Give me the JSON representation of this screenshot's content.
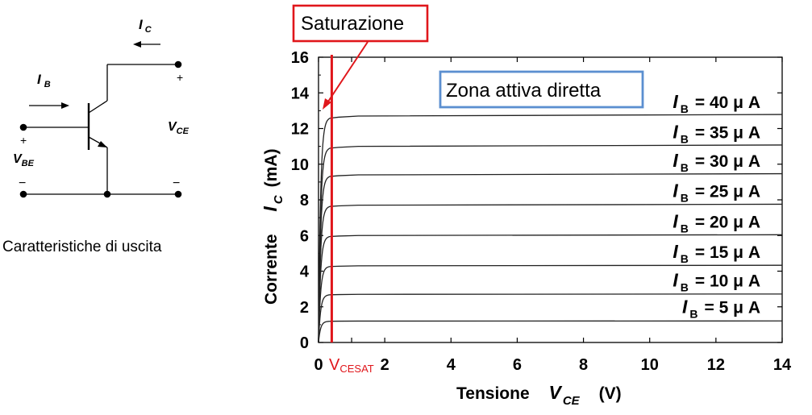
{
  "circuit": {
    "ic_label": "I",
    "ic_sub": "C",
    "ib_label": "I",
    "ib_sub": "B",
    "vce_label": "V",
    "vce_sub": "CE",
    "vbe_label": "V",
    "vbe_sub": "BE",
    "plus": "+",
    "minus": "−",
    "caption": "Caratteristiche di uscita"
  },
  "annotations": {
    "saturation": "Saturazione",
    "active_zone": "Zona attiva diretta",
    "vcesat_main": "V",
    "vcesat_sub": "CESAT",
    "box_red": "#e0161b",
    "box_blue": "#5b8fd0"
  },
  "chart_data": {
    "type": "line",
    "xlabel": "Tensione",
    "xlabel_var": "V",
    "xlabel_var_sub": "CE",
    "xlabel_unit": "(V)",
    "ylabel": "Corrente",
    "ylabel_var": "I",
    "ylabel_var_sub": "C",
    "ylabel_unit": "(mA)",
    "xlim": [
      0,
      14
    ],
    "ylim": [
      0,
      16
    ],
    "xticks": [
      "0",
      "",
      "2",
      "4",
      "6",
      "8",
      "10",
      "12",
      "14"
    ],
    "xtick_values": [
      0,
      1,
      2,
      4,
      6,
      8,
      10,
      12,
      14
    ],
    "yticks": [
      "0",
      "2",
      "4",
      "6",
      "8",
      "10",
      "12",
      "14",
      "16"
    ],
    "ytick_values": [
      0,
      2,
      4,
      6,
      8,
      10,
      12,
      14,
      16
    ],
    "vcesat": 0.4,
    "series": [
      {
        "ib": "40",
        "value": 12.7
      },
      {
        "ib": "35",
        "value": 11.0
      },
      {
        "ib": "30",
        "value": 9.4
      },
      {
        "ib": "25",
        "value": 7.7
      },
      {
        "ib": "20",
        "value": 6.0
      },
      {
        "ib": "15",
        "value": 4.3
      },
      {
        "ib": "10",
        "value": 2.7
      },
      {
        "ib": "5",
        "value": 1.2
      }
    ],
    "legend_I": "I",
    "legend_sub": "B",
    "legend_eq": "=",
    "legend_unit": "μ A"
  }
}
